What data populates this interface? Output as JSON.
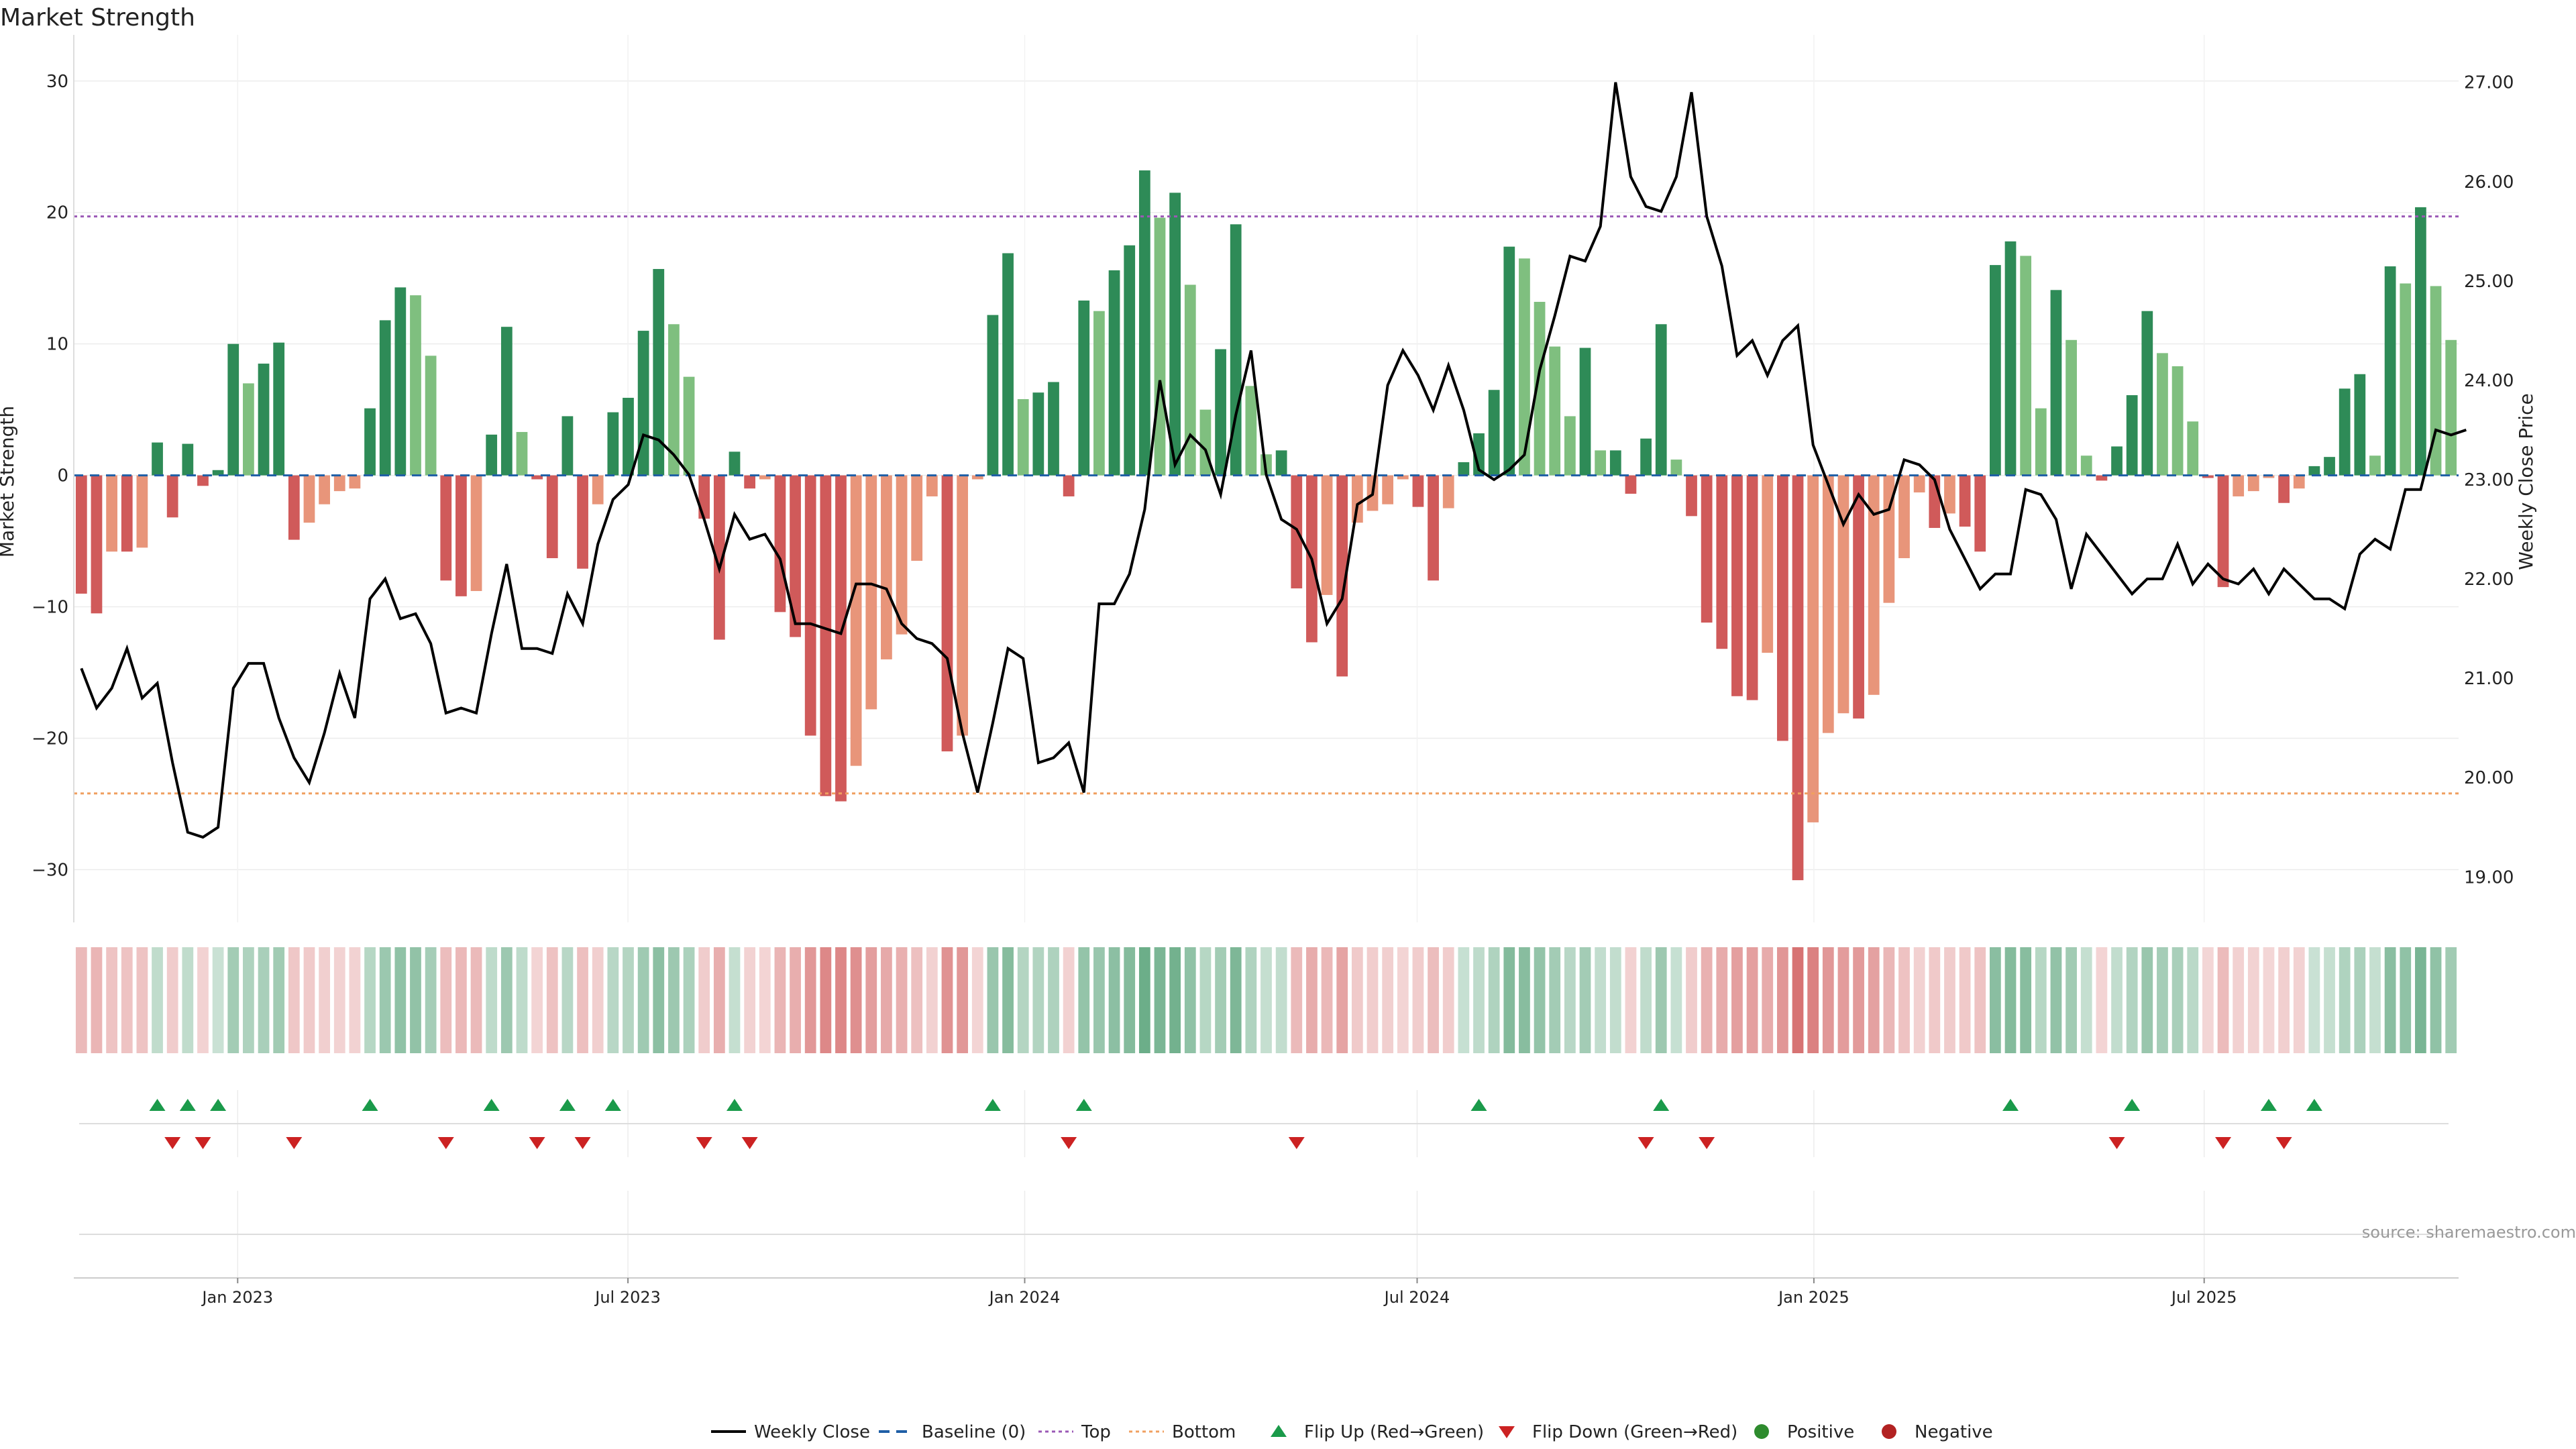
{
  "title": "Market Strength",
  "source": "source: sharemaestro.com",
  "colors": {
    "bar_strong_pos": "#2e8b57",
    "bar_weak_pos": "#7fbf7f",
    "bar_strong_neg": "#d05a5a",
    "bar_weak_neg": "#e8957a",
    "close": "#000000",
    "baseline": "#1f5fa6",
    "top": "#9b59b6",
    "bottom": "#f0a060",
    "flip_up": "#1a9a4a",
    "flip_down": "#cc2222",
    "positive": "#2e8b2e",
    "negative": "#b22222"
  },
  "chart_data": {
    "type": "bar",
    "title": "Market Strength",
    "ylabel": "Market Strength",
    "y2label": "Weekly Close Price",
    "ylim": [
      -33.5,
      33
    ],
    "y2lim": [
      18.61,
      27.41
    ],
    "yticks": [
      -30,
      -20,
      -10,
      0,
      10,
      20,
      30
    ],
    "y2ticks": [
      "19.00",
      "20.00",
      "21.00",
      "22.00",
      "23.00",
      "24.00",
      "25.00",
      "26.00",
      "27.00"
    ],
    "x_start": "2022-10-17",
    "x_end": "2025-10-27",
    "xticks": [
      {
        "date": "2023-01-01",
        "label": "Jan 2023"
      },
      {
        "date": "2023-07-01",
        "label": "Jul 2023"
      },
      {
        "date": "2024-01-01",
        "label": "Jan 2024"
      },
      {
        "date": "2024-07-01",
        "label": "Jul 2024"
      },
      {
        "date": "2025-01-01",
        "label": "Jan 2025"
      },
      {
        "date": "2025-07-01",
        "label": "Jul 2025"
      }
    ],
    "top_level": 19.7,
    "bottom_level": -24.2,
    "strength": [
      -9,
      -10.5,
      -5.8,
      -5.8,
      -5.5,
      2.5,
      -3.2,
      2.4,
      -0.8,
      0.4,
      10,
      7,
      8.5,
      10.1,
      -4.9,
      -3.6,
      -2.2,
      -1.2,
      -1,
      5.1,
      11.8,
      14.3,
      13.7,
      9.1,
      -8,
      -9.2,
      -8.8,
      3.1,
      11.3,
      3.3,
      -0.3,
      -6.3,
      4.5,
      -7.1,
      -2.2,
      4.8,
      5.9,
      11,
      15.7,
      11.5,
      7.5,
      -3.3,
      -12.5,
      1.8,
      -1,
      -0.3,
      -10.4,
      -12.3,
      -19.8,
      -24.4,
      -24.8,
      -22.1,
      -17.8,
      -14,
      -12.1,
      -6.5,
      -1.6,
      -21,
      -19.8,
      -0.3,
      12.2,
      16.9,
      5.8,
      6.3,
      7.1,
      -1.6,
      13.3,
      12.5,
      15.6,
      17.5,
      23.2,
      19.6,
      21.5,
      14.5,
      5,
      9.6,
      19.1,
      6.8,
      1.6,
      1.9,
      -8.6,
      -12.7,
      -9.1,
      -15.3,
      -3.6,
      -2.7,
      -2.2,
      -0.3,
      -2.4,
      -8,
      -2.5,
      1,
      3.2,
      6.5,
      17.4,
      16.5,
      13.2,
      9.8,
      4.5,
      9.7,
      1.9,
      1.9,
      -1.4,
      2.8,
      11.5,
      1.2,
      -3.1,
      -11.2,
      -13.2,
      -16.8,
      -17.1,
      -13.5,
      -20.2,
      -30.8,
      -26.4,
      -19.6,
      -18.1,
      -18.5,
      -16.7,
      -9.7,
      -6.3,
      -1.3,
      -4,
      -2.9,
      -3.9,
      -5.8,
      16,
      17.8,
      16.7,
      5.1,
      14.1,
      10.3,
      1.5,
      -0.4,
      2.2,
      6.1,
      12.5,
      9.3,
      8.3,
      4.1,
      -0.2,
      -8.5,
      -1.6,
      -1.2,
      -0.2,
      -2.1,
      -1,
      0.7,
      1.4,
      6.6,
      7.7,
      1.5,
      15.9,
      14.6,
      20.4,
      14.4,
      10.3
    ],
    "weekly_close": [
      21.1,
      20.7,
      20.9,
      21.3,
      20.8,
      20.95,
      20.15,
      19.45,
      19.4,
      19.5,
      20.9,
      21.15,
      21.15,
      20.6,
      20.2,
      19.95,
      20.45,
      21.05,
      20.6,
      21.8,
      22.0,
      21.6,
      21.65,
      21.35,
      20.65,
      20.7,
      20.65,
      21.45,
      22.15,
      21.3,
      21.3,
      21.25,
      21.85,
      21.55,
      22.35,
      22.8,
      22.95,
      23.45,
      23.4,
      23.25,
      23.05,
      22.6,
      22.1,
      22.65,
      22.4,
      22.45,
      22.2,
      21.55,
      21.55,
      21.5,
      21.45,
      21.95,
      21.95,
      21.9,
      21.55,
      21.4,
      21.35,
      21.2,
      20.45,
      19.85,
      20.55,
      21.3,
      21.2,
      20.15,
      20.2,
      20.35,
      19.85,
      21.75,
      21.75,
      22.05,
      22.7,
      24.0,
      23.15,
      23.45,
      23.3,
      22.85,
      23.65,
      24.3,
      23.05,
      22.6,
      22.5,
      22.2,
      21.55,
      21.8,
      22.75,
      22.85,
      23.95,
      24.3,
      24.05,
      23.7,
      24.15,
      23.7,
      23.1,
      23.0,
      23.1,
      23.25,
      24.1,
      24.65,
      25.25,
      25.2,
      25.55,
      27.0,
      26.05,
      25.75,
      25.7,
      26.05,
      26.9,
      25.65,
      25.15,
      24.25,
      24.4,
      24.05,
      24.4,
      24.55,
      23.35,
      22.95,
      22.55,
      22.85,
      22.65,
      22.7,
      23.2,
      23.15,
      23.0,
      22.5,
      22.2,
      21.9,
      22.05,
      22.05,
      22.9,
      22.85,
      22.6,
      21.9,
      22.45,
      22.25,
      22.05,
      21.85,
      22.0,
      22.0,
      22.35,
      21.95,
      22.15,
      22.0,
      21.95,
      22.1,
      21.85,
      22.1,
      21.95,
      21.8,
      21.8,
      21.7,
      22.25,
      22.4,
      22.3,
      22.9,
      22.9,
      23.5,
      23.45,
      23.5
    ],
    "flip_up_weeks": [
      5,
      7,
      9,
      19,
      27,
      32,
      35,
      43,
      60,
      66,
      92,
      104,
      127,
      135,
      144,
      147
    ],
    "flip_down_weeks": [
      6,
      8,
      14,
      24,
      30,
      33,
      41,
      44,
      65,
      80,
      103,
      107,
      134,
      141,
      145
    ],
    "series": [
      {
        "name": "Weekly Close"
      },
      {
        "name": "Baseline (0)"
      },
      {
        "name": "Top"
      },
      {
        "name": "Bottom"
      },
      {
        "name": "Flip Up (Red→Green)"
      },
      {
        "name": "Flip Down (Green→Red)"
      },
      {
        "name": "Positive"
      },
      {
        "name": "Negative"
      }
    ]
  },
  "legend": {
    "weekly_close": "Weekly Close",
    "baseline": "Baseline (0)",
    "top": "Top",
    "bottom": "Bottom",
    "flip_up": "Flip Up (Red→Green)",
    "flip_down": "Flip Down (Green→Red)",
    "positive": "Positive",
    "negative": "Negative"
  }
}
